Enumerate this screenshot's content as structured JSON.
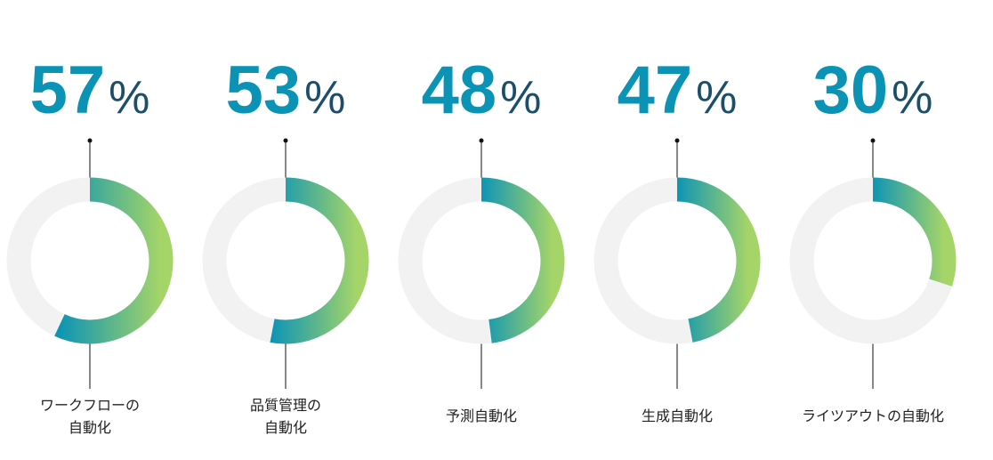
{
  "chart_data": {
    "type": "donut",
    "categories": [
      "ワークフローの\n自動化",
      "品質管理の\n自動化",
      "予測自動化",
      "生成自動化",
      "ライツアウトの自動化"
    ],
    "values": [
      57,
      53,
      48,
      47,
      30
    ],
    "unit": "%",
    "max": 100,
    "colors": [
      "#0e95b3",
      "#a5d568"
    ],
    "track_color": "#f2f2f2"
  }
}
